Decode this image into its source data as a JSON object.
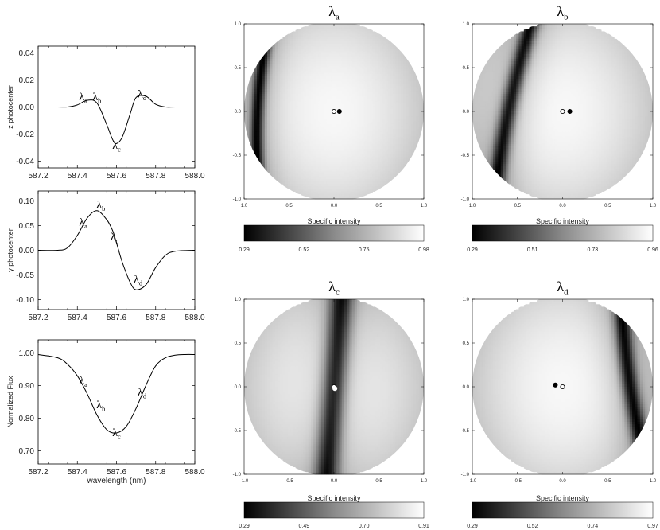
{
  "chart_data": [
    {
      "type": "line",
      "id": "z",
      "ylabel": "z photocenter",
      "xlabel": "",
      "xlim": [
        587.2,
        588.0
      ],
      "ylim": [
        -0.045,
        0.045
      ],
      "xticks": [
        "587.2",
        "587.4",
        "587.6",
        "587.8",
        "588.0"
      ],
      "yticks": [
        "0.04",
        "0.02",
        "0.00",
        "-0.02",
        "-0.04"
      ],
      "ytick_values": [
        0.04,
        0.02,
        0.0,
        -0.02,
        -0.04
      ],
      "x": [
        587.2,
        587.3,
        587.35,
        587.4,
        587.45,
        587.5,
        587.55,
        587.58,
        587.6,
        587.63,
        587.67,
        587.7,
        587.75,
        587.8,
        587.85,
        587.9,
        588.0
      ],
      "y": [
        0.0,
        0.0,
        0.0,
        0.0015,
        0.005,
        0.003,
        -0.013,
        -0.024,
        -0.027,
        -0.022,
        -0.005,
        0.007,
        0.008,
        0.002,
        0.0,
        0.0,
        0.0
      ],
      "annotations": [
        {
          "text": "λa",
          "x": 587.43,
          "y": 0.005
        },
        {
          "text": "λb",
          "x": 587.5,
          "y": 0.005
        },
        {
          "text": "λc",
          "x": 587.6,
          "y": -0.031
        },
        {
          "text": "λd",
          "x": 587.73,
          "y": 0.007
        }
      ]
    },
    {
      "type": "line",
      "id": "y",
      "ylabel": "y photocenter",
      "xlabel": "",
      "xlim": [
        587.2,
        588.0
      ],
      "ylim": [
        -0.12,
        0.12
      ],
      "xticks": [
        "587.2",
        "587.4",
        "587.6",
        "587.8",
        "588.0"
      ],
      "yticks": [
        "0.10",
        "0.05",
        "0.00",
        "-0.05",
        "-0.10"
      ],
      "ytick_values": [
        0.1,
        0.05,
        0.0,
        -0.05,
        -0.1
      ],
      "x": [
        587.2,
        587.3,
        587.35,
        587.4,
        587.45,
        587.5,
        587.55,
        587.58,
        587.6,
        587.63,
        587.67,
        587.7,
        587.75,
        587.8,
        587.85,
        587.9,
        588.0
      ],
      "y": [
        0.0,
        0.0,
        0.005,
        0.03,
        0.065,
        0.08,
        0.062,
        0.04,
        0.015,
        -0.025,
        -0.065,
        -0.08,
        -0.07,
        -0.035,
        -0.01,
        -0.002,
        0.0
      ],
      "annotations": [
        {
          "text": "λa",
          "x": 587.43,
          "y": 0.05
        },
        {
          "text": "λb",
          "x": 587.52,
          "y": 0.085
        },
        {
          "text": "λc",
          "x": 587.59,
          "y": 0.02
        },
        {
          "text": "λd",
          "x": 587.71,
          "y": -0.065
        }
      ]
    },
    {
      "type": "line",
      "id": "flux",
      "ylabel": "Normalized Flux",
      "xlabel": "wavelength (nm)",
      "xlim": [
        587.2,
        588.0
      ],
      "ylim": [
        0.66,
        1.04
      ],
      "xticks": [
        "587.2",
        "587.4",
        "587.6",
        "587.8",
        "588.0"
      ],
      "yticks": [
        "1.00",
        "0.90",
        "0.80",
        "0.70"
      ],
      "ytick_values": [
        1.0,
        0.9,
        0.8,
        0.7
      ],
      "x": [
        587.2,
        587.3,
        587.35,
        587.4,
        587.45,
        587.5,
        587.55,
        587.6,
        587.65,
        587.7,
        587.75,
        587.8,
        587.85,
        587.9,
        587.95,
        588.0
      ],
      "y": [
        0.995,
        0.985,
        0.965,
        0.93,
        0.875,
        0.81,
        0.765,
        0.755,
        0.775,
        0.83,
        0.9,
        0.96,
        0.985,
        0.993,
        0.995,
        0.995
      ],
      "annotations": [
        {
          "text": "λa",
          "x": 587.43,
          "y": 0.905
        },
        {
          "text": "λb",
          "x": 587.52,
          "y": 0.83
        },
        {
          "text": "λc",
          "x": 587.6,
          "y": 0.745
        },
        {
          "text": "λd",
          "x": 587.73,
          "y": 0.87
        }
      ]
    },
    {
      "type": "heatmap",
      "id": "a",
      "title": "λa",
      "xticks": [
        "1.0",
        "0.5",
        "0.0",
        "0.5",
        "1.0"
      ],
      "yticks": [
        "1.0",
        "0.5",
        "0.0",
        "-0.5",
        "-1.0"
      ],
      "xlim": [
        -1,
        1
      ],
      "ylim": [
        -1,
        1
      ],
      "colorbar_label": "Specific intensity",
      "colorbar_ticks": [
        "0.29",
        "0.52",
        "0.75",
        "0.98"
      ],
      "band": {
        "center": -0.85,
        "tilt": 0.05,
        "curve": 0.08,
        "width": 0.07
      },
      "markers": [
        {
          "x": 0.0,
          "y": 0.0,
          "fill": "open"
        },
        {
          "x": 0.06,
          "y": 0.0,
          "fill": "filled"
        }
      ]
    },
    {
      "type": "heatmap",
      "id": "b",
      "title": "λb",
      "xticks": [
        "1.0",
        "0.5",
        "0.0",
        "0.5",
        "1.0"
      ],
      "yticks": [
        "1.0",
        "0.5",
        "0.0",
        "-0.5",
        "-1.0"
      ],
      "xlim": [
        -1,
        1
      ],
      "ylim": [
        -1,
        1
      ],
      "colorbar_label": "Specific intensity",
      "colorbar_ticks": [
        "0.29",
        "0.51",
        "0.73",
        "0.96"
      ],
      "band": {
        "center": -0.6,
        "tilt": 0.2,
        "curve": 0.05,
        "width": 0.09
      },
      "markers": [
        {
          "x": 0.0,
          "y": 0.0,
          "fill": "open"
        },
        {
          "x": 0.08,
          "y": 0.0,
          "fill": "filled"
        }
      ]
    },
    {
      "type": "heatmap",
      "id": "c",
      "title": "λc",
      "xticks": [
        "-1.0",
        "-0.5",
        "0.0",
        "0.5",
        "1.0"
      ],
      "yticks": [
        "1.0",
        "0.5",
        "0.0",
        "-0.5",
        "-1.0"
      ],
      "xlim": [
        -1,
        1
      ],
      "ylim": [
        -1,
        1
      ],
      "colorbar_label": "Specific intensity",
      "colorbar_ticks": [
        "0.29",
        "0.49",
        "0.70",
        "0.91"
      ],
      "band": {
        "center": 0.0,
        "tilt": 0.08,
        "curve": 0.0,
        "width": 0.13
      },
      "markers": [
        {
          "x": 0.0,
          "y": 0.0,
          "fill": "open"
        },
        {
          "x": 0.01,
          "y": -0.02,
          "fill": "filled-white"
        }
      ]
    },
    {
      "type": "heatmap",
      "id": "d",
      "title": "λd",
      "xticks": [
        "-1.0",
        "-0.5",
        "0.0",
        "0.5",
        "1.0"
      ],
      "yticks": [
        "1.0",
        "0.5",
        "0.0",
        "-0.5",
        "-1.0"
      ],
      "xlim": [
        -1,
        1
      ],
      "ylim": [
        -1,
        1
      ],
      "colorbar_label": "Specific intensity",
      "colorbar_ticks": [
        "0.29",
        "0.52",
        "0.74",
        "0.97"
      ],
      "band": {
        "center": 0.75,
        "tilt": -0.15,
        "curve": 0.05,
        "width": 0.09
      },
      "markers": [
        {
          "x": -0.08,
          "y": 0.02,
          "fill": "filled"
        },
        {
          "x": 0.0,
          "y": 0.0,
          "fill": "open"
        }
      ]
    }
  ]
}
